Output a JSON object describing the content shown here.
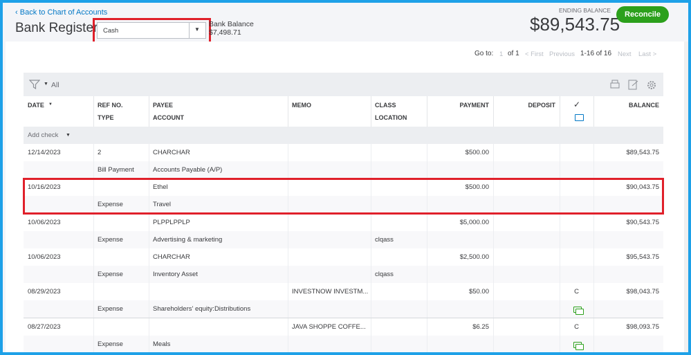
{
  "header": {
    "back_link": "Back to Chart of Accounts",
    "title": "Bank Register",
    "account": "Cash",
    "bank_balance_label": "Bank Balance",
    "bank_balance": "$7,498.71",
    "ending_balance_label": "ENDING BALANCE",
    "ending_balance": "$89,543.75",
    "reconcile": "Reconcile"
  },
  "pagination": {
    "go_to": "Go to:",
    "page": "1",
    "of": "of 1",
    "first": "< First",
    "previous": "Previous",
    "range": "1-16 of 16",
    "next": "Next",
    "last": "Last >"
  },
  "toolbar": {
    "filter": "All"
  },
  "columns": {
    "date": "DATE",
    "ref": "REF NO.",
    "type": "TYPE",
    "payee": "PAYEE",
    "account": "ACCOUNT",
    "memo": "MEMO",
    "class": "CLASS",
    "location": "LOCATION",
    "payment": "PAYMENT",
    "deposit": "DEPOSIT",
    "balance": "BALANCE"
  },
  "add_check": "Add check",
  "rows": [
    {
      "date": "12/14/2023",
      "ref": "2",
      "payee": "CHARCHAR",
      "payment": "$500.00",
      "balance": "$89,543.75",
      "type": "Bill Payment",
      "account": "Accounts Payable (A/P)"
    },
    {
      "date": "10/16/2023",
      "payee": "Ethel",
      "payment": "$500.00",
      "balance": "$90,043.75",
      "type": "Expense",
      "account": "Travel"
    },
    {
      "date": "10/06/2023",
      "payee": "PLPPLPPLP",
      "payment": "$5,000.00",
      "balance": "$90,543.75",
      "type": "Expense",
      "account": "Advertising & marketing",
      "location": "clqass"
    },
    {
      "date": "10/06/2023",
      "payee": "CHARCHAR",
      "payment": "$2,500.00",
      "balance": "$95,543.75",
      "type": "Expense",
      "account": "Inventory Asset",
      "location": "clqass"
    },
    {
      "date": "08/29/2023",
      "memo": "INVESTNOW INVESTM...",
      "payment": "$50.00",
      "cleared": "C",
      "balance": "$98,043.75",
      "type": "Expense",
      "account": "Shareholders' equity:Distributions",
      "attachment": true
    },
    {
      "date": "08/27/2023",
      "memo": "JAVA SHOPPE COFFE...",
      "payment": "$6.25",
      "cleared": "C",
      "balance": "$98,093.75",
      "type": "Expense",
      "account": "Meals",
      "attachment": true
    }
  ]
}
